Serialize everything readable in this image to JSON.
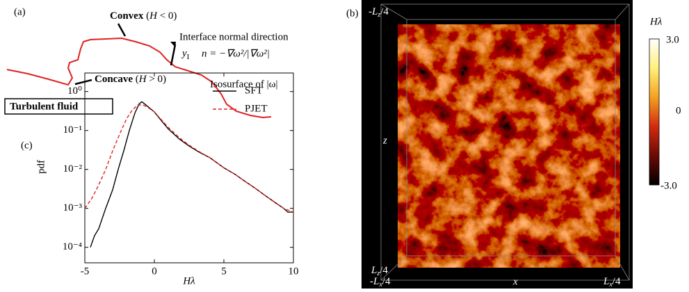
{
  "panel_a": {
    "label": "(a)",
    "convex": {
      "word": "Convex",
      "cond_open": "(",
      "cond_var": "H",
      "cond_rest": " < 0)"
    },
    "normal_title": "Interface normal direction",
    "yi": {
      "base": "y",
      "sub": "I"
    },
    "normal_formula": "n = −∇ω²/|∇ω²|",
    "concave": {
      "word": "Concave",
      "cond_open": "(",
      "cond_var": "H",
      "cond_rest": " > 0)"
    },
    "isosurface": "Isosurface of |ω|",
    "fluid": "Turbulent fluid"
  },
  "panel_b": {
    "label": "(b)",
    "z_top": {
      "prefix": "-L",
      "sub": "z",
      "suffix": "/4"
    },
    "z_bottom": {
      "prefix": "L",
      "sub": "z",
      "suffix": "/4"
    },
    "x_left": {
      "prefix": "-L",
      "sub": "x",
      "suffix": "/4"
    },
    "x_right": {
      "prefix": "L",
      "sub": "x",
      "suffix": "/4"
    },
    "x_axis": "x",
    "z_axis": "z",
    "colorbar": {
      "title": "Hλ",
      "max": "3.0",
      "mid": "0",
      "min": "-3.0"
    }
  },
  "chart_data": {
    "type": "line",
    "panel_label": "(c)",
    "xlabel": "Hλ",
    "ylabel": "pdf",
    "xlim": [
      -5,
      10
    ],
    "xticks": [
      -5,
      0,
      5,
      10
    ],
    "ylim": [
      4e-05,
      3
    ],
    "log_y": true,
    "yticks": [
      {
        "value": 1,
        "label": "10⁰"
      },
      {
        "value": 0.1,
        "label": "10⁻¹"
      },
      {
        "value": 0.01,
        "label": "10⁻²"
      },
      {
        "value": 0.001,
        "label": "10⁻³"
      },
      {
        "value": 0.0001,
        "label": "10⁻⁴"
      }
    ],
    "series": [
      {
        "name": "SFT",
        "color": "#000000",
        "dash": false,
        "x": [
          -4.6,
          -4.3,
          -4.0,
          -3.5,
          -3.0,
          -2.6,
          -2.2,
          -1.8,
          -1.4,
          -1.1,
          -0.9,
          -0.6,
          0,
          0.5,
          1,
          1.8,
          2.5,
          3.2,
          4,
          5,
          5.8,
          6.5,
          7.3,
          8,
          8.7,
          9.3,
          9.6,
          10
        ],
        "values": [
          0.0001,
          0.0002,
          0.0003,
          0.001,
          0.003,
          0.01,
          0.03,
          0.1,
          0.28,
          0.48,
          0.55,
          0.45,
          0.3,
          0.18,
          0.11,
          0.06,
          0.04,
          0.028,
          0.02,
          0.011,
          0.0075,
          0.005,
          0.0032,
          0.0021,
          0.0014,
          0.001,
          0.0008,
          0.0008
        ]
      },
      {
        "name": "PJET",
        "color": "#e02020",
        "dash": true,
        "x": [
          -5,
          -4.5,
          -4,
          -3.5,
          -3,
          -2.5,
          -2,
          -1.6,
          -1.2,
          -0.8,
          -0.4,
          0,
          0.5,
          1,
          1.8,
          2.5,
          3.2,
          4,
          5,
          5.8,
          6.5,
          7.3,
          8,
          8.7,
          9.3,
          10
        ],
        "values": [
          0.001,
          0.0018,
          0.004,
          0.01,
          0.03,
          0.08,
          0.2,
          0.33,
          0.45,
          0.45,
          0.38,
          0.3,
          0.19,
          0.12,
          0.065,
          0.042,
          0.029,
          0.02,
          0.011,
          0.0075,
          0.005,
          0.0032,
          0.0021,
          0.0014,
          0.001,
          0.0008
        ]
      }
    ]
  }
}
